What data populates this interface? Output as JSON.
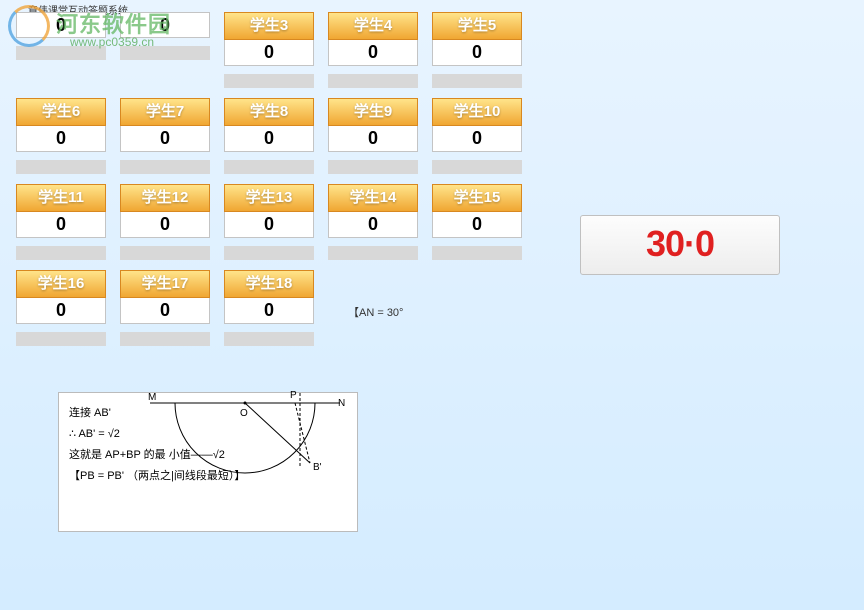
{
  "app": {
    "title": "章伟课堂互动答题系统"
  },
  "watermark": {
    "name": "河东软件园",
    "url": "www.pc0359.cn"
  },
  "rows": [
    [
      {
        "label": "",
        "score": "0",
        "hidden_header": true
      },
      {
        "label": "",
        "score": "0",
        "hidden_header": true
      },
      {
        "label": "学生3",
        "score": "0"
      },
      {
        "label": "学生4",
        "score": "0"
      },
      {
        "label": "学生5",
        "score": "0"
      }
    ],
    [
      {
        "label": "学生6",
        "score": "0"
      },
      {
        "label": "学生7",
        "score": "0"
      },
      {
        "label": "学生8",
        "score": "0"
      },
      {
        "label": "学生9",
        "score": "0"
      },
      {
        "label": "学生10",
        "score": "0"
      }
    ],
    [
      {
        "label": "学生11",
        "score": "0"
      },
      {
        "label": "学生12",
        "score": "0"
      },
      {
        "label": "学生13",
        "score": "0"
      },
      {
        "label": "学生14",
        "score": "0"
      },
      {
        "label": "学生15",
        "score": "0"
      }
    ],
    [
      {
        "label": "学生16",
        "score": "0"
      },
      {
        "label": "学生17",
        "score": "0"
      },
      {
        "label": "学生18",
        "score": "0"
      }
    ]
  ],
  "timer": {
    "display": "30·0"
  },
  "angle_note": "【AN = 30°",
  "math": {
    "line1": "连接 AB'",
    "line2": "∴ AB' = √2",
    "line3": "这就是 AP+BP 的最 小值——√2",
    "line4": "【PB = PB'    （两点之|间线段最短）】",
    "points": {
      "M": "M",
      "O": "O",
      "P": "P",
      "N": "N",
      "B": "B'"
    }
  },
  "colors": {
    "header_gradient_top": "#ffe48a",
    "header_gradient_bottom": "#f0a632",
    "timer_color": "#e02020",
    "bg_top": "#e8f4ff",
    "bg_bottom": "#d4ecff"
  }
}
